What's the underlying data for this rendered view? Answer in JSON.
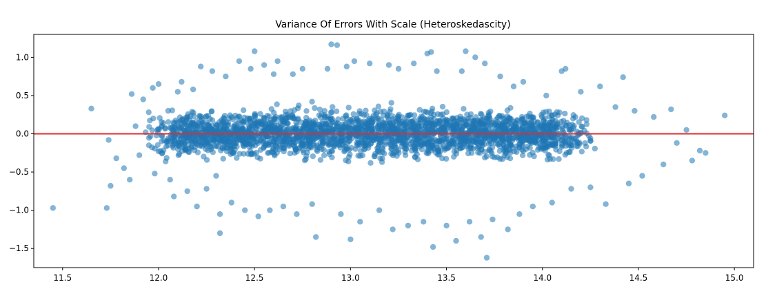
{
  "chart_data": {
    "type": "scatter",
    "title": "Variance Of Errors With Scale (Heteroskedascity)",
    "xlabel": "",
    "ylabel": "",
    "xlim": [
      11.35,
      15.1
    ],
    "ylim": [
      -1.75,
      1.3
    ],
    "x_ticks": [
      11.5,
      12.0,
      12.5,
      13.0,
      13.5,
      14.0,
      14.5,
      15.0
    ],
    "x_tick_labels": [
      "11.5",
      "12.0",
      "12.5",
      "13.0",
      "13.5",
      "14.0",
      "14.5",
      "15.0"
    ],
    "y_ticks": [
      1.0,
      0.5,
      0.0,
      -0.5,
      -1.0,
      -1.5
    ],
    "y_tick_labels": [
      "1.0",
      "0.5",
      "0.0",
      "−0.5",
      "−1.0",
      "−1.5"
    ],
    "grid": false,
    "reference_line": {
      "y": 0.0,
      "color": "#e32b2b"
    },
    "series": [
      {
        "color": "#1f77b4",
        "alpha": 0.55,
        "points": [
          [
            11.45,
            -0.97
          ],
          [
            11.65,
            0.33
          ],
          [
            11.73,
            -0.97
          ],
          [
            11.74,
            -0.08
          ],
          [
            11.75,
            -0.68
          ],
          [
            11.78,
            -0.32
          ],
          [
            11.82,
            -0.45
          ],
          [
            11.85,
            -0.6
          ],
          [
            11.86,
            0.52
          ],
          [
            11.88,
            0.1
          ],
          [
            11.9,
            -0.28
          ],
          [
            11.92,
            0.45
          ],
          [
            11.95,
            -0.15
          ],
          [
            11.97,
            0.6
          ],
          [
            11.98,
            -0.52
          ],
          [
            12.0,
            0.65
          ],
          [
            12.02,
            -0.25
          ],
          [
            12.05,
            0.3
          ],
          [
            12.06,
            -0.6
          ],
          [
            12.08,
            -0.82
          ],
          [
            12.1,
            0.55
          ],
          [
            12.12,
            0.68
          ],
          [
            12.15,
            -0.75
          ],
          [
            12.18,
            0.58
          ],
          [
            12.2,
            -0.95
          ],
          [
            12.22,
            0.88
          ],
          [
            12.25,
            -0.72
          ],
          [
            12.28,
            0.82
          ],
          [
            12.3,
            -0.55
          ],
          [
            12.32,
            -1.05
          ],
          [
            12.32,
            -1.3
          ],
          [
            12.35,
            0.75
          ],
          [
            12.38,
            -0.9
          ],
          [
            12.42,
            0.95
          ],
          [
            12.45,
            -1.0
          ],
          [
            12.48,
            0.85
          ],
          [
            12.5,
            1.08
          ],
          [
            12.52,
            -1.08
          ],
          [
            12.55,
            0.9
          ],
          [
            12.58,
            -1.0
          ],
          [
            12.6,
            0.78
          ],
          [
            12.62,
            0.95
          ],
          [
            12.65,
            -0.95
          ],
          [
            12.7,
            0.78
          ],
          [
            12.72,
            -1.05
          ],
          [
            12.75,
            0.85
          ],
          [
            12.8,
            -0.92
          ],
          [
            12.82,
            -1.35
          ],
          [
            12.88,
            0.85
          ],
          [
            12.9,
            1.17
          ],
          [
            12.93,
            1.16
          ],
          [
            12.95,
            -1.05
          ],
          [
            12.98,
            0.88
          ],
          [
            13.0,
            -1.38
          ],
          [
            13.02,
            0.95
          ],
          [
            13.05,
            -1.15
          ],
          [
            13.1,
            0.92
          ],
          [
            13.15,
            -1.0
          ],
          [
            13.2,
            0.9
          ],
          [
            13.22,
            -1.25
          ],
          [
            13.25,
            0.85
          ],
          [
            13.3,
            -1.2
          ],
          [
            13.33,
            0.92
          ],
          [
            13.38,
            -1.15
          ],
          [
            13.4,
            1.05
          ],
          [
            13.42,
            1.07
          ],
          [
            13.43,
            -1.48
          ],
          [
            13.45,
            0.82
          ],
          [
            13.5,
            -1.2
          ],
          [
            13.55,
            -1.4
          ],
          [
            13.58,
            0.82
          ],
          [
            13.6,
            1.08
          ],
          [
            13.62,
            -1.15
          ],
          [
            13.65,
            1.0
          ],
          [
            13.68,
            -1.35
          ],
          [
            13.7,
            0.92
          ],
          [
            13.71,
            -1.62
          ],
          [
            13.74,
            -1.12
          ],
          [
            13.78,
            0.75
          ],
          [
            13.82,
            -1.25
          ],
          [
            13.85,
            0.62
          ],
          [
            13.88,
            -1.05
          ],
          [
            13.9,
            0.68
          ],
          [
            13.95,
            -0.95
          ],
          [
            14.02,
            0.5
          ],
          [
            14.05,
            -0.9
          ],
          [
            14.1,
            0.82
          ],
          [
            14.12,
            0.85
          ],
          [
            14.15,
            -0.72
          ],
          [
            14.2,
            0.55
          ],
          [
            14.25,
            -0.7
          ],
          [
            14.3,
            0.62
          ],
          [
            14.33,
            -0.92
          ],
          [
            14.38,
            0.35
          ],
          [
            14.42,
            0.74
          ],
          [
            14.45,
            -0.65
          ],
          [
            14.48,
            0.3
          ],
          [
            14.52,
            -0.55
          ],
          [
            14.58,
            0.22
          ],
          [
            14.63,
            -0.4
          ],
          [
            14.67,
            0.32
          ],
          [
            14.7,
            -0.12
          ],
          [
            14.75,
            0.05
          ],
          [
            14.78,
            -0.35
          ],
          [
            14.82,
            -0.22
          ],
          [
            14.85,
            -0.25
          ],
          [
            14.95,
            0.24
          ]
        ]
      }
    ]
  }
}
